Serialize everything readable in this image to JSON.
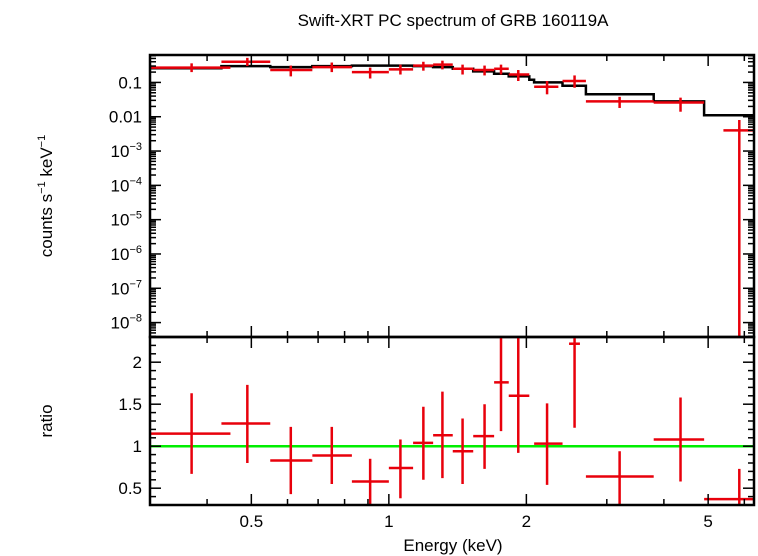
{
  "chart_data": {
    "title": "Swift-XRT PC spectrum of GRB 160119A",
    "xlabel": "Energy (keV)",
    "x_scale": "log",
    "xlim": [
      0.3,
      6.3
    ],
    "x_ticks": [
      {
        "value": 0.5,
        "label": "0.5"
      },
      {
        "value": 1,
        "label": "1"
      },
      {
        "value": 2,
        "label": "2"
      },
      {
        "value": 5,
        "label": "5"
      }
    ],
    "colors": {
      "data": "#e8000b",
      "model": "#000000",
      "unity": "#00ee00"
    },
    "top_panel": {
      "type": "scatter",
      "ylabel_parts": {
        "pre": "counts s",
        "sup1": "−1",
        "mid": " keV",
        "sup2": "−1"
      },
      "y_scale": "log",
      "ylim": [
        3.8e-09,
        0.63
      ],
      "y_ticks": [
        {
          "exp": -1,
          "label": "0.1"
        },
        {
          "exp": -2,
          "label": "0.01"
        },
        {
          "exp": -3,
          "base": "10",
          "sup": "−3"
        },
        {
          "exp": -4,
          "base": "10",
          "sup": "−4"
        },
        {
          "exp": -5,
          "base": "10",
          "sup": "−5"
        },
        {
          "exp": -6,
          "base": "10",
          "sup": "−6"
        },
        {
          "exp": -7,
          "base": "10",
          "sup": "−7"
        },
        {
          "exp": -8,
          "base": "10",
          "sup": "−8"
        }
      ],
      "points": [
        {
          "x": 0.37,
          "xlo": 0.3,
          "xhi": 0.45,
          "y": 0.27,
          "ylo": 0.2,
          "yhi": 0.36
        },
        {
          "x": 0.49,
          "xlo": 0.43,
          "xhi": 0.55,
          "y": 0.4,
          "ylo": 0.3,
          "yhi": 0.52
        },
        {
          "x": 0.61,
          "xlo": 0.55,
          "xhi": 0.68,
          "y": 0.23,
          "ylo": 0.15,
          "yhi": 0.31
        },
        {
          "x": 0.75,
          "xlo": 0.68,
          "xhi": 0.83,
          "y": 0.28,
          "ylo": 0.2,
          "yhi": 0.38
        },
        {
          "x": 0.91,
          "xlo": 0.83,
          "xhi": 1.0,
          "y": 0.2,
          "ylo": 0.13,
          "yhi": 0.27
        },
        {
          "x": 1.06,
          "xlo": 1.0,
          "xhi": 1.13,
          "y": 0.24,
          "ylo": 0.17,
          "yhi": 0.33
        },
        {
          "x": 1.19,
          "xlo": 1.13,
          "xhi": 1.25,
          "y": 0.31,
          "ylo": 0.22,
          "yhi": 0.4
        },
        {
          "x": 1.31,
          "xlo": 1.25,
          "xhi": 1.38,
          "y": 0.33,
          "ylo": 0.24,
          "yhi": 0.43
        },
        {
          "x": 1.45,
          "xlo": 1.38,
          "xhi": 1.53,
          "y": 0.25,
          "ylo": 0.17,
          "yhi": 0.33
        },
        {
          "x": 1.62,
          "xlo": 1.53,
          "xhi": 1.7,
          "y": 0.23,
          "ylo": 0.16,
          "yhi": 0.31
        },
        {
          "x": 1.76,
          "xlo": 1.7,
          "xhi": 1.83,
          "y": 0.25,
          "ylo": 0.17,
          "yhi": 0.33
        },
        {
          "x": 1.92,
          "xlo": 1.83,
          "xhi": 2.03,
          "y": 0.17,
          "ylo": 0.11,
          "yhi": 0.23
        },
        {
          "x": 2.22,
          "xlo": 2.08,
          "xhi": 2.35,
          "y": 0.075,
          "ylo": 0.045,
          "yhi": 0.11
        },
        {
          "x": 2.55,
          "xlo": 2.4,
          "xhi": 2.7,
          "y": 0.11,
          "ylo": 0.07,
          "yhi": 0.16
        },
        {
          "x": 3.2,
          "xlo": 2.7,
          "xhi": 3.8,
          "y": 0.028,
          "ylo": 0.018,
          "yhi": 0.038
        },
        {
          "x": 4.35,
          "xlo": 3.8,
          "xhi": 4.9,
          "y": 0.026,
          "ylo": 0.014,
          "yhi": 0.036
        },
        {
          "x": 5.85,
          "xlo": 5.4,
          "xhi": 6.3,
          "y": 0.004,
          "ylo": 3.8e-09,
          "yhi": 0.008
        }
      ],
      "model_steps": [
        {
          "x0": 0.3,
          "x1": 0.43,
          "y": 0.26
        },
        {
          "x0": 0.43,
          "x1": 0.55,
          "y": 0.3
        },
        {
          "x0": 0.55,
          "x1": 0.68,
          "y": 0.28
        },
        {
          "x0": 0.68,
          "x1": 0.83,
          "y": 0.3
        },
        {
          "x0": 0.83,
          "x1": 1.0,
          "y": 0.31
        },
        {
          "x0": 1.0,
          "x1": 1.13,
          "y": 0.31
        },
        {
          "x0": 1.13,
          "x1": 1.25,
          "y": 0.3
        },
        {
          "x0": 1.25,
          "x1": 1.38,
          "y": 0.28
        },
        {
          "x0": 1.38,
          "x1": 1.53,
          "y": 0.25
        },
        {
          "x0": 1.53,
          "x1": 1.7,
          "y": 0.21
        },
        {
          "x0": 1.7,
          "x1": 1.83,
          "y": 0.18
        },
        {
          "x0": 1.83,
          "x1": 2.03,
          "y": 0.15
        },
        {
          "x0": 2.03,
          "x1": 2.08,
          "y": 0.12
        },
        {
          "x0": 2.08,
          "x1": 2.4,
          "y": 0.1
        },
        {
          "x0": 2.4,
          "x1": 2.7,
          "y": 0.08
        },
        {
          "x0": 2.7,
          "x1": 3.8,
          "y": 0.045
        },
        {
          "x0": 3.8,
          "x1": 4.9,
          "y": 0.028
        },
        {
          "x0": 4.9,
          "x1": 6.3,
          "y": 0.011
        }
      ]
    },
    "bottom_panel": {
      "type": "scatter",
      "ylabel": "ratio",
      "y_scale": "linear",
      "ylim": [
        0.3,
        2.3
      ],
      "y_ticks": [
        {
          "value": 0.5,
          "label": "0.5"
        },
        {
          "value": 1,
          "label": "1"
        },
        {
          "value": 1.5,
          "label": "1.5"
        },
        {
          "value": 2,
          "label": "2"
        }
      ],
      "unity_line": 1.0,
      "points": [
        {
          "x": 0.37,
          "xlo": 0.3,
          "xhi": 0.45,
          "y": 1.15,
          "ylo": 0.67,
          "yhi": 1.63
        },
        {
          "x": 0.49,
          "xlo": 0.43,
          "xhi": 0.55,
          "y": 1.27,
          "ylo": 0.8,
          "yhi": 1.73
        },
        {
          "x": 0.61,
          "xlo": 0.55,
          "xhi": 0.68,
          "y": 0.83,
          "ylo": 0.43,
          "yhi": 1.23
        },
        {
          "x": 0.75,
          "xlo": 0.68,
          "xhi": 0.83,
          "y": 0.89,
          "ylo": 0.55,
          "yhi": 1.23
        },
        {
          "x": 0.91,
          "xlo": 0.83,
          "xhi": 1.0,
          "y": 0.58,
          "ylo": 0.3,
          "yhi": 0.85
        },
        {
          "x": 1.06,
          "xlo": 1.0,
          "xhi": 1.13,
          "y": 0.74,
          "ylo": 0.38,
          "yhi": 1.08
        },
        {
          "x": 1.19,
          "xlo": 1.13,
          "xhi": 1.25,
          "y": 1.04,
          "ylo": 0.6,
          "yhi": 1.47
        },
        {
          "x": 1.31,
          "xlo": 1.25,
          "xhi": 1.38,
          "y": 1.13,
          "ylo": 0.62,
          "yhi": 1.65
        },
        {
          "x": 1.45,
          "xlo": 1.38,
          "xhi": 1.53,
          "y": 0.94,
          "ylo": 0.55,
          "yhi": 1.33
        },
        {
          "x": 1.62,
          "xlo": 1.53,
          "xhi": 1.7,
          "y": 1.12,
          "ylo": 0.73,
          "yhi": 1.5
        },
        {
          "x": 1.76,
          "xlo": 1.7,
          "xhi": 1.83,
          "y": 1.76,
          "ylo": 1.18,
          "yhi": 2.3
        },
        {
          "x": 1.92,
          "xlo": 1.83,
          "xhi": 2.03,
          "y": 1.6,
          "ylo": 0.92,
          "yhi": 2.3
        },
        {
          "x": 2.22,
          "xlo": 2.08,
          "xhi": 2.4,
          "y": 1.03,
          "ylo": 0.54,
          "yhi": 1.51
        },
        {
          "x": 2.55,
          "xlo": 2.48,
          "xhi": 2.62,
          "y": 2.22,
          "ylo": 1.22,
          "yhi": 2.3
        },
        {
          "x": 3.2,
          "xlo": 2.7,
          "xhi": 3.8,
          "y": 0.64,
          "ylo": 0.3,
          "yhi": 0.94
        },
        {
          "x": 4.35,
          "xlo": 3.8,
          "xhi": 4.9,
          "y": 1.08,
          "ylo": 0.58,
          "yhi": 1.58
        },
        {
          "x": 5.85,
          "xlo": 4.9,
          "xhi": 6.3,
          "y": 0.37,
          "ylo": 0.3,
          "yhi": 0.73
        }
      ]
    }
  }
}
